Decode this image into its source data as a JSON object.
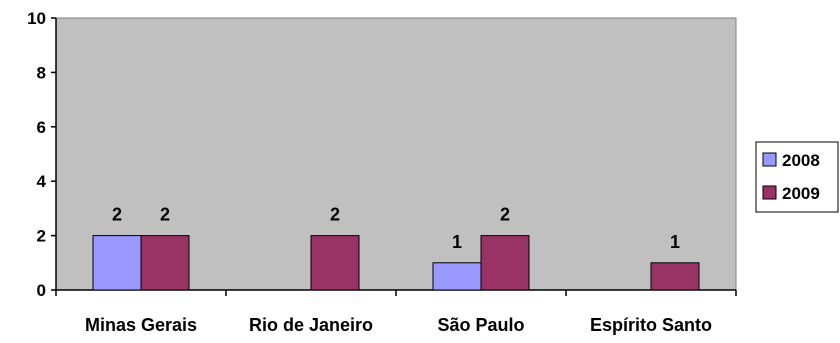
{
  "chart_data": {
    "type": "bar",
    "categories": [
      "Minas Gerais",
      "Rio de Janeiro",
      "São Paulo",
      "Espírito Santo"
    ],
    "series": [
      {
        "name": "2008",
        "values": [
          2,
          null,
          1,
          null
        ],
        "color": "#9999ff"
      },
      {
        "name": "2009",
        "values": [
          2,
          2,
          2,
          1
        ],
        "color": "#993366"
      }
    ],
    "ylim": [
      0,
      10
    ],
    "yticks": [
      0,
      2,
      4,
      6,
      8,
      10
    ],
    "plot_background": "#c0c0c0",
    "grid": false,
    "legend_position": "right",
    "data_labels": true
  }
}
